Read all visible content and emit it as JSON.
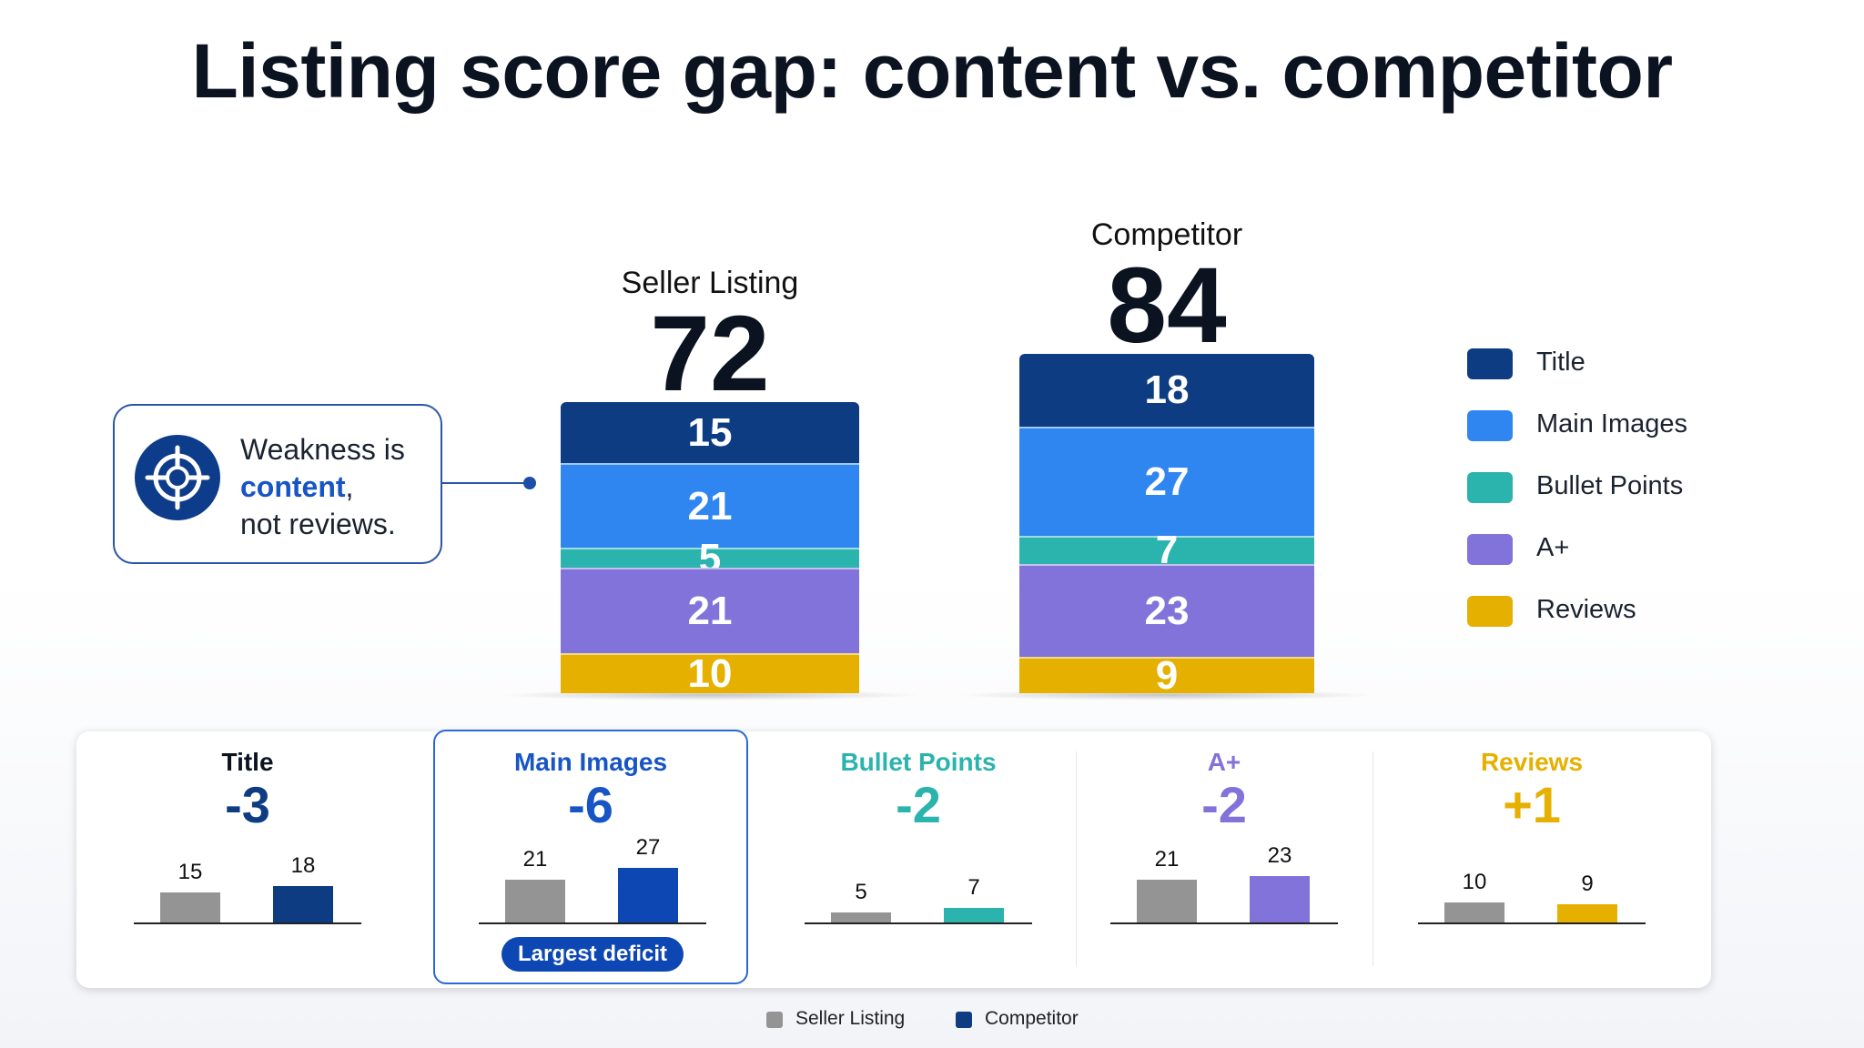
{
  "title": "Listing score gap: content vs. competitor",
  "colors": {
    "Title": "#0d3c82",
    "Main Images": "#2f86f0",
    "Bullet Points": "#2bb3ad",
    "A+": "#8273db",
    "Reviews": "#e5b000",
    "seller_gray": "#949494"
  },
  "chart_data": [
    {
      "type": "bar",
      "stacked": true,
      "categories": [
        "Seller Listing",
        "Competitor"
      ],
      "totals": [
        72,
        84
      ],
      "series": [
        {
          "name": "Title",
          "values": [
            15,
            18
          ]
        },
        {
          "name": "Main Images",
          "values": [
            21,
            27
          ]
        },
        {
          "name": "Bullet Points",
          "values": [
            5,
            7
          ]
        },
        {
          "name": "A+",
          "values": [
            21,
            23
          ]
        },
        {
          "name": "Reviews",
          "values": [
            10,
            9
          ]
        }
      ],
      "legend_position": "right"
    },
    {
      "type": "bar",
      "panels": [
        {
          "name": "Title",
          "delta": "-3",
          "seller": 15,
          "competitor": 18
        },
        {
          "name": "Main Images",
          "delta": "-6",
          "seller": 21,
          "competitor": 27,
          "badge": "Largest deficit"
        },
        {
          "name": "Bullet Points",
          "delta": "-2",
          "seller": 5,
          "competitor": 7
        },
        {
          "name": "A+",
          "delta": "-2",
          "seller": 21,
          "competitor": 23
        },
        {
          "name": "Reviews",
          "delta": "+1",
          "seller": 10,
          "competitor": 9
        }
      ],
      "legend": [
        "Seller Listing",
        "Competitor"
      ],
      "legend_position": "bottom"
    }
  ],
  "callout": {
    "line1": "Weakness is",
    "highlight": "content",
    "comma": ",",
    "line3": "not reviews.",
    "icon": "crosshair-target-icon"
  }
}
